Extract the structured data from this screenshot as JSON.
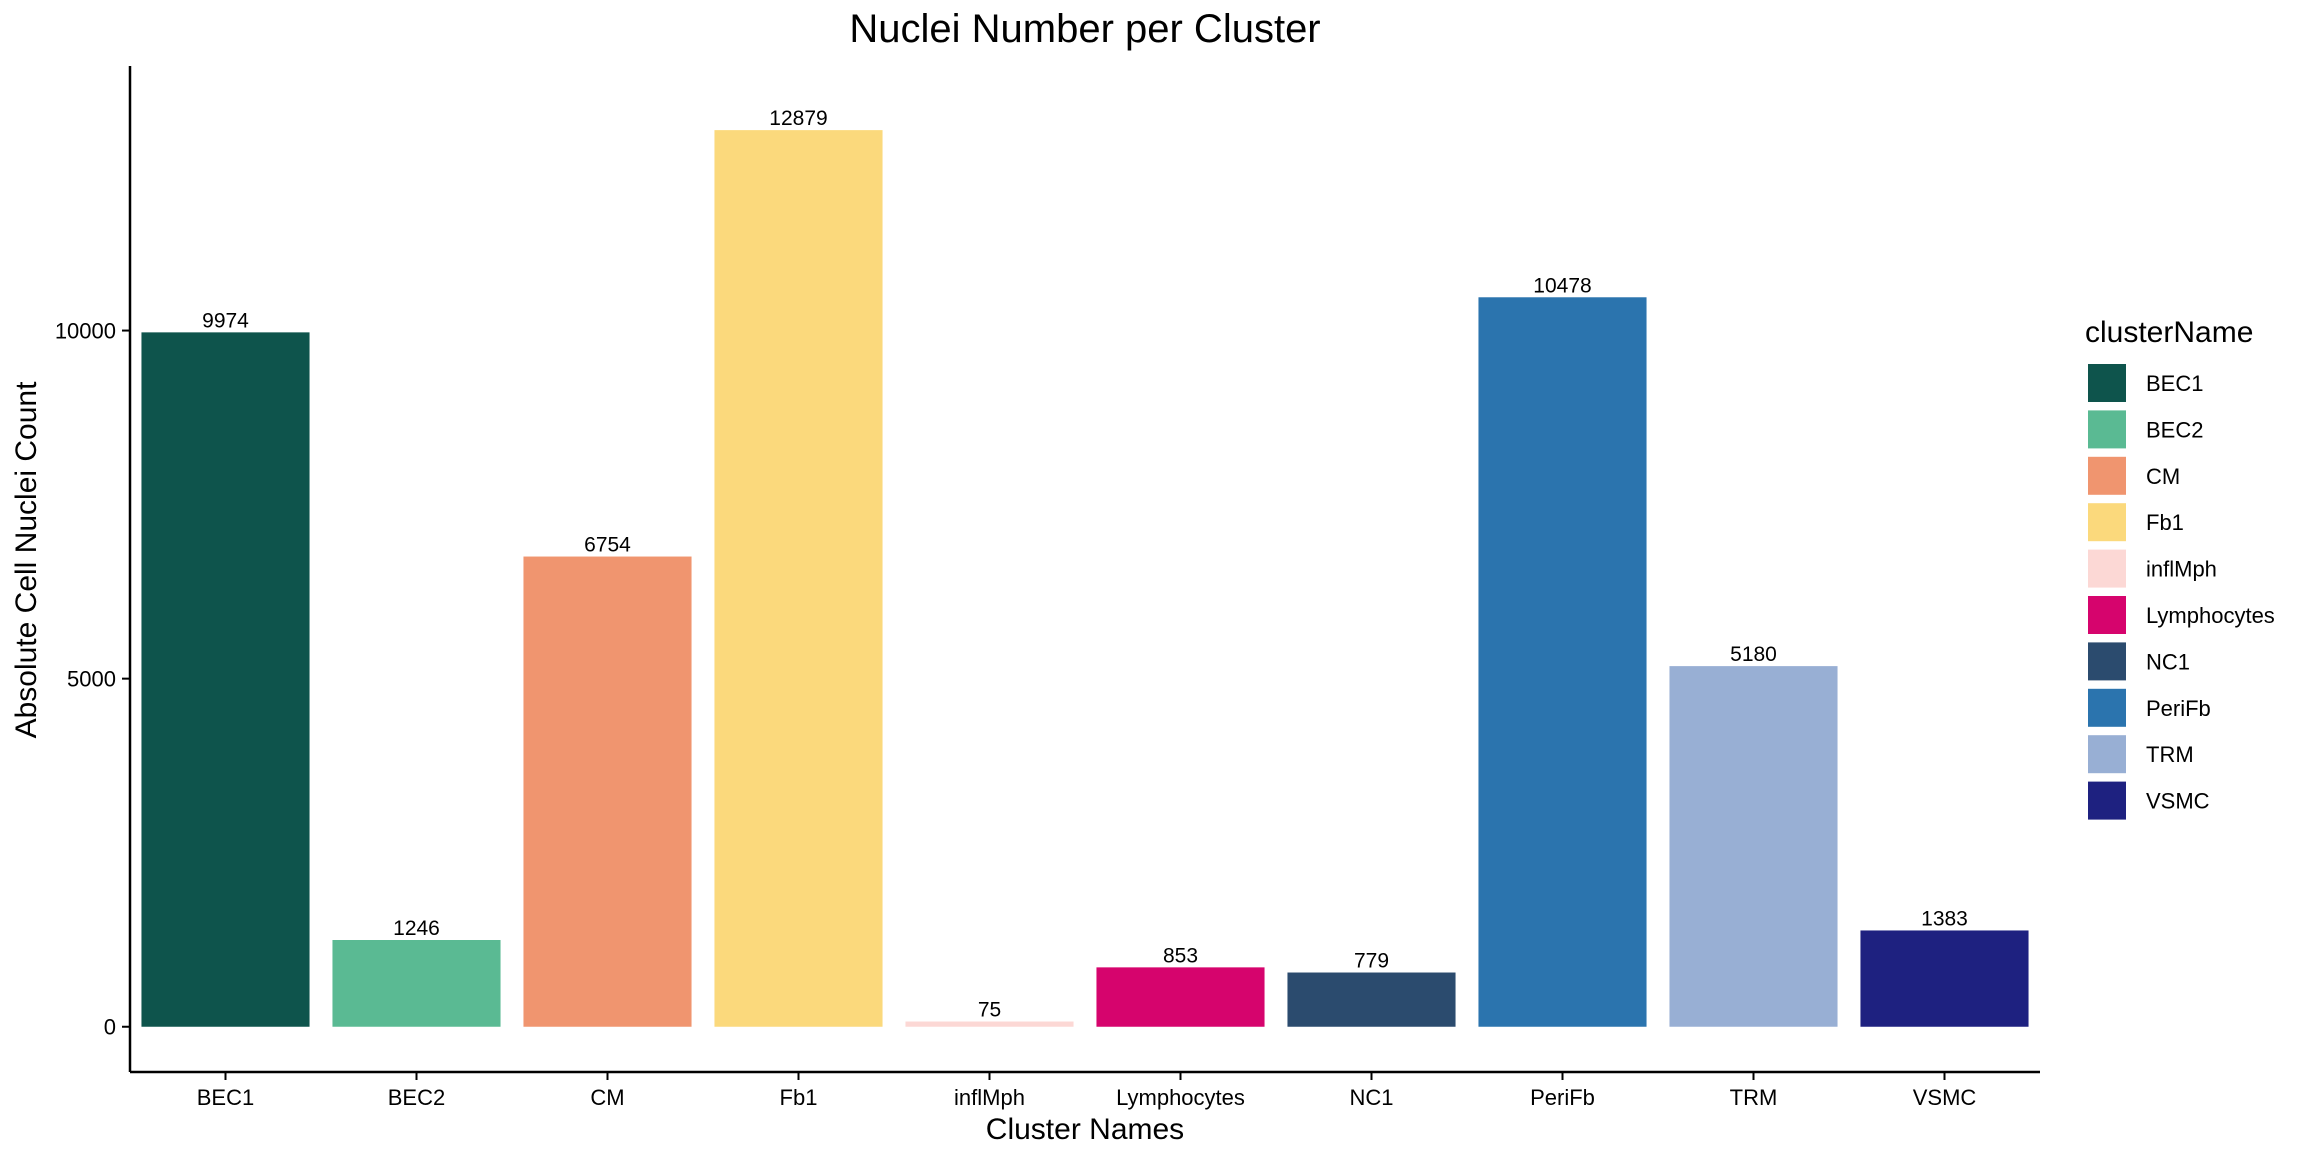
{
  "chart_data": {
    "type": "bar",
    "title": "Nuclei Number per Cluster",
    "xlabel": "Cluster Names",
    "ylabel": "Absolute Cell Nuclei Count",
    "categories": [
      "BEC1",
      "BEC2",
      "CM",
      "Fb1",
      "inflMph",
      "Lymphocytes",
      "NC1",
      "PeriFb",
      "TRM",
      "VSMC"
    ],
    "values": [
      9974,
      1246,
      6754,
      12879,
      75,
      853,
      779,
      10478,
      5180,
      1383
    ],
    "colors": [
      "#0e544c",
      "#5aba93",
      "#f0956f",
      "#fbd97c",
      "#fcd8d5",
      "#d6046d",
      "#2b4b6e",
      "#2b74ae",
      "#98afd4",
      "#1e2180"
    ],
    "yticks": [
      "0",
      "5000",
      "10000"
    ],
    "ylim": [
      -650,
      13800
    ],
    "grid": false,
    "legend": {
      "title": "clusterName",
      "position": "right"
    }
  }
}
